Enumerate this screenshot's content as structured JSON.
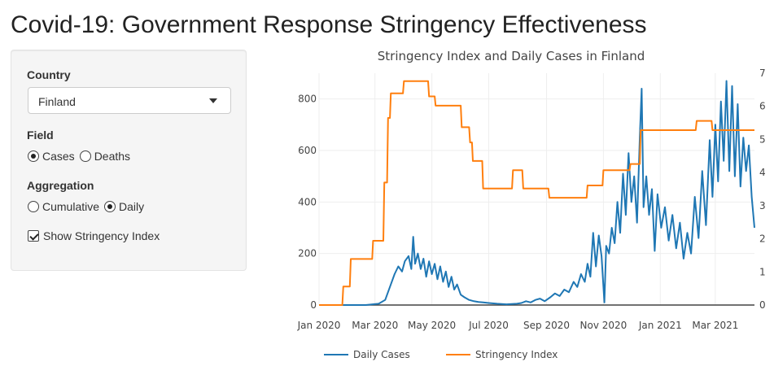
{
  "app": {
    "title": "Covid-19: Government Response Stringency Effectiveness"
  },
  "sidebar": {
    "country": {
      "label": "Country",
      "selected": "Finland"
    },
    "field": {
      "label": "Field",
      "options": [
        {
          "label": "Cases",
          "checked": true
        },
        {
          "label": "Deaths",
          "checked": false
        }
      ]
    },
    "aggregation": {
      "label": "Aggregation",
      "options": [
        {
          "label": "Cumulative",
          "checked": false
        },
        {
          "label": "Daily",
          "checked": true
        }
      ]
    },
    "stringency_toggle": {
      "label": "Show Stringency Index",
      "checked": true
    }
  },
  "colors": {
    "cases": "#1f77b4",
    "stringency": "#ff7f0e",
    "axis": "#444444",
    "grid": "#eeeeee"
  },
  "chart_data": {
    "type": "line",
    "title": "Stringency Index and Daily Cases in Finland",
    "x_tick_labels": [
      "Jan 2020",
      "Mar 2020",
      "May 2020",
      "Jul 2020",
      "Sep 2020",
      "Nov 2020",
      "Jan 2021",
      "Mar 2021"
    ],
    "x_ticks": [
      "2020-01-01",
      "2020-03-01",
      "2020-05-01",
      "2020-07-01",
      "2020-09-01",
      "2020-11-01",
      "2021-01-01",
      "2021-03-01"
    ],
    "xlim": [
      "2020-01-01",
      "2021-04-12"
    ],
    "y_left_ticks": [
      "0",
      "200",
      "400",
      "600",
      "800"
    ],
    "ylim_left": [
      0,
      900
    ],
    "y_right_ticks": [
      "0",
      "1",
      "2",
      "3",
      "4",
      "5",
      "6",
      "7"
    ],
    "ylim_right": [
      0,
      7
    ],
    "legend_placement": "bottom",
    "grid": true,
    "series": [
      {
        "name": "Daily Cases",
        "axis": "left",
        "points": [
          [
            "2020-01-01",
            0
          ],
          [
            "2020-02-20",
            0
          ],
          [
            "2020-03-05",
            5
          ],
          [
            "2020-03-12",
            20
          ],
          [
            "2020-03-18",
            80
          ],
          [
            "2020-03-22",
            120
          ],
          [
            "2020-03-26",
            150
          ],
          [
            "2020-03-30",
            130
          ],
          [
            "2020-04-02",
            170
          ],
          [
            "2020-04-06",
            190
          ],
          [
            "2020-04-09",
            140
          ],
          [
            "2020-04-11",
            265
          ],
          [
            "2020-04-13",
            160
          ],
          [
            "2020-04-16",
            200
          ],
          [
            "2020-04-19",
            140
          ],
          [
            "2020-04-22",
            180
          ],
          [
            "2020-04-25",
            110
          ],
          [
            "2020-04-28",
            170
          ],
          [
            "2020-05-01",
            120
          ],
          [
            "2020-05-04",
            160
          ],
          [
            "2020-05-07",
            100
          ],
          [
            "2020-05-10",
            150
          ],
          [
            "2020-05-13",
            90
          ],
          [
            "2020-05-16",
            130
          ],
          [
            "2020-05-19",
            70
          ],
          [
            "2020-05-22",
            110
          ],
          [
            "2020-05-25",
            60
          ],
          [
            "2020-05-28",
            80
          ],
          [
            "2020-06-01",
            40
          ],
          [
            "2020-06-05",
            30
          ],
          [
            "2020-06-10",
            20
          ],
          [
            "2020-06-15",
            15
          ],
          [
            "2020-06-20",
            12
          ],
          [
            "2020-06-25",
            10
          ],
          [
            "2020-07-01",
            8
          ],
          [
            "2020-07-10",
            5
          ],
          [
            "2020-07-20",
            3
          ],
          [
            "2020-07-31",
            5
          ],
          [
            "2020-08-05",
            8
          ],
          [
            "2020-08-10",
            15
          ],
          [
            "2020-08-15",
            10
          ],
          [
            "2020-08-20",
            20
          ],
          [
            "2020-08-25",
            25
          ],
          [
            "2020-08-30",
            15
          ],
          [
            "2020-09-05",
            30
          ],
          [
            "2020-09-10",
            45
          ],
          [
            "2020-09-15",
            35
          ],
          [
            "2020-09-20",
            60
          ],
          [
            "2020-09-25",
            50
          ],
          [
            "2020-09-30",
            90
          ],
          [
            "2020-10-04",
            70
          ],
          [
            "2020-10-08",
            120
          ],
          [
            "2020-10-12",
            90
          ],
          [
            "2020-10-15",
            160
          ],
          [
            "2020-10-18",
            110
          ],
          [
            "2020-10-21",
            280
          ],
          [
            "2020-10-24",
            150
          ],
          [
            "2020-10-27",
            270
          ],
          [
            "2020-10-30",
            190
          ],
          [
            "2020-11-02",
            10
          ],
          [
            "2020-11-04",
            230
          ],
          [
            "2020-11-07",
            200
          ],
          [
            "2020-11-10",
            300
          ],
          [
            "2020-11-13",
            240
          ],
          [
            "2020-11-16",
            400
          ],
          [
            "2020-11-19",
            280
          ],
          [
            "2020-11-22",
            510
          ],
          [
            "2020-11-25",
            350
          ],
          [
            "2020-11-28",
            590
          ],
          [
            "2020-12-01",
            400
          ],
          [
            "2020-12-04",
            500
          ],
          [
            "2020-12-07",
            320
          ],
          [
            "2020-12-10",
            650
          ],
          [
            "2020-12-12",
            840
          ],
          [
            "2020-12-14",
            380
          ],
          [
            "2020-12-17",
            500
          ],
          [
            "2020-12-20",
            350
          ],
          [
            "2020-12-23",
            450
          ],
          [
            "2020-12-26",
            210
          ],
          [
            "2020-12-29",
            430
          ],
          [
            "2021-01-02",
            300
          ],
          [
            "2021-01-06",
            380
          ],
          [
            "2021-01-10",
            250
          ],
          [
            "2021-01-14",
            350
          ],
          [
            "2021-01-18",
            220
          ],
          [
            "2021-01-22",
            320
          ],
          [
            "2021-01-26",
            180
          ],
          [
            "2021-01-30",
            280
          ],
          [
            "2021-02-03",
            200
          ],
          [
            "2021-02-07",
            420
          ],
          [
            "2021-02-11",
            260
          ],
          [
            "2021-02-15",
            520
          ],
          [
            "2021-02-19",
            310
          ],
          [
            "2021-02-23",
            640
          ],
          [
            "2021-02-26",
            420
          ],
          [
            "2021-03-01",
            700
          ],
          [
            "2021-03-04",
            480
          ],
          [
            "2021-03-07",
            790
          ],
          [
            "2021-03-10",
            560
          ],
          [
            "2021-03-13",
            870
          ],
          [
            "2021-03-16",
            520
          ],
          [
            "2021-03-19",
            850
          ],
          [
            "2021-03-22",
            500
          ],
          [
            "2021-03-25",
            780
          ],
          [
            "2021-03-28",
            460
          ],
          [
            "2021-03-31",
            650
          ],
          [
            "2021-04-03",
            520
          ],
          [
            "2021-04-06",
            620
          ],
          [
            "2021-04-09",
            420
          ],
          [
            "2021-04-12",
            300
          ]
        ]
      },
      {
        "name": "Stringency Index",
        "axis": "right",
        "points": [
          [
            "2020-01-01",
            0
          ],
          [
            "2020-01-26",
            0
          ],
          [
            "2020-01-27",
            0.56
          ],
          [
            "2020-02-03",
            0.56
          ],
          [
            "2020-02-04",
            1.39
          ],
          [
            "2020-02-27",
            1.39
          ],
          [
            "2020-02-28",
            1.94
          ],
          [
            "2020-03-10",
            1.94
          ],
          [
            "2020-03-11",
            3.7
          ],
          [
            "2020-03-14",
            3.7
          ],
          [
            "2020-03-15",
            5.65
          ],
          [
            "2020-03-17",
            5.65
          ],
          [
            "2020-03-18",
            6.39
          ],
          [
            "2020-03-31",
            6.39
          ],
          [
            "2020-04-01",
            6.76
          ],
          [
            "2020-04-27",
            6.76
          ],
          [
            "2020-04-28",
            6.3
          ],
          [
            "2020-05-04",
            6.3
          ],
          [
            "2020-05-05",
            6.02
          ],
          [
            "2020-06-01",
            6.02
          ],
          [
            "2020-06-02",
            5.37
          ],
          [
            "2020-06-10",
            5.37
          ],
          [
            "2020-06-11",
            4.91
          ],
          [
            "2020-06-13",
            4.91
          ],
          [
            "2020-06-14",
            4.35
          ],
          [
            "2020-06-24",
            4.35
          ],
          [
            "2020-06-25",
            3.52
          ],
          [
            "2020-07-26",
            3.52
          ],
          [
            "2020-07-27",
            4.07
          ],
          [
            "2020-08-06",
            4.07
          ],
          [
            "2020-08-07",
            3.52
          ],
          [
            "2020-09-03",
            3.52
          ],
          [
            "2020-09-04",
            3.24
          ],
          [
            "2020-10-14",
            3.24
          ],
          [
            "2020-10-15",
            3.61
          ],
          [
            "2020-10-31",
            3.61
          ],
          [
            "2020-11-01",
            4.07
          ],
          [
            "2020-11-29",
            4.07
          ],
          [
            "2020-11-30",
            4.26
          ],
          [
            "2020-12-10",
            4.26
          ],
          [
            "2020-12-11",
            5.28
          ],
          [
            "2021-02-08",
            5.28
          ],
          [
            "2021-02-09",
            5.56
          ],
          [
            "2021-02-25",
            5.56
          ],
          [
            "2021-02-26",
            5.28
          ],
          [
            "2021-04-12",
            5.28
          ]
        ]
      }
    ]
  }
}
